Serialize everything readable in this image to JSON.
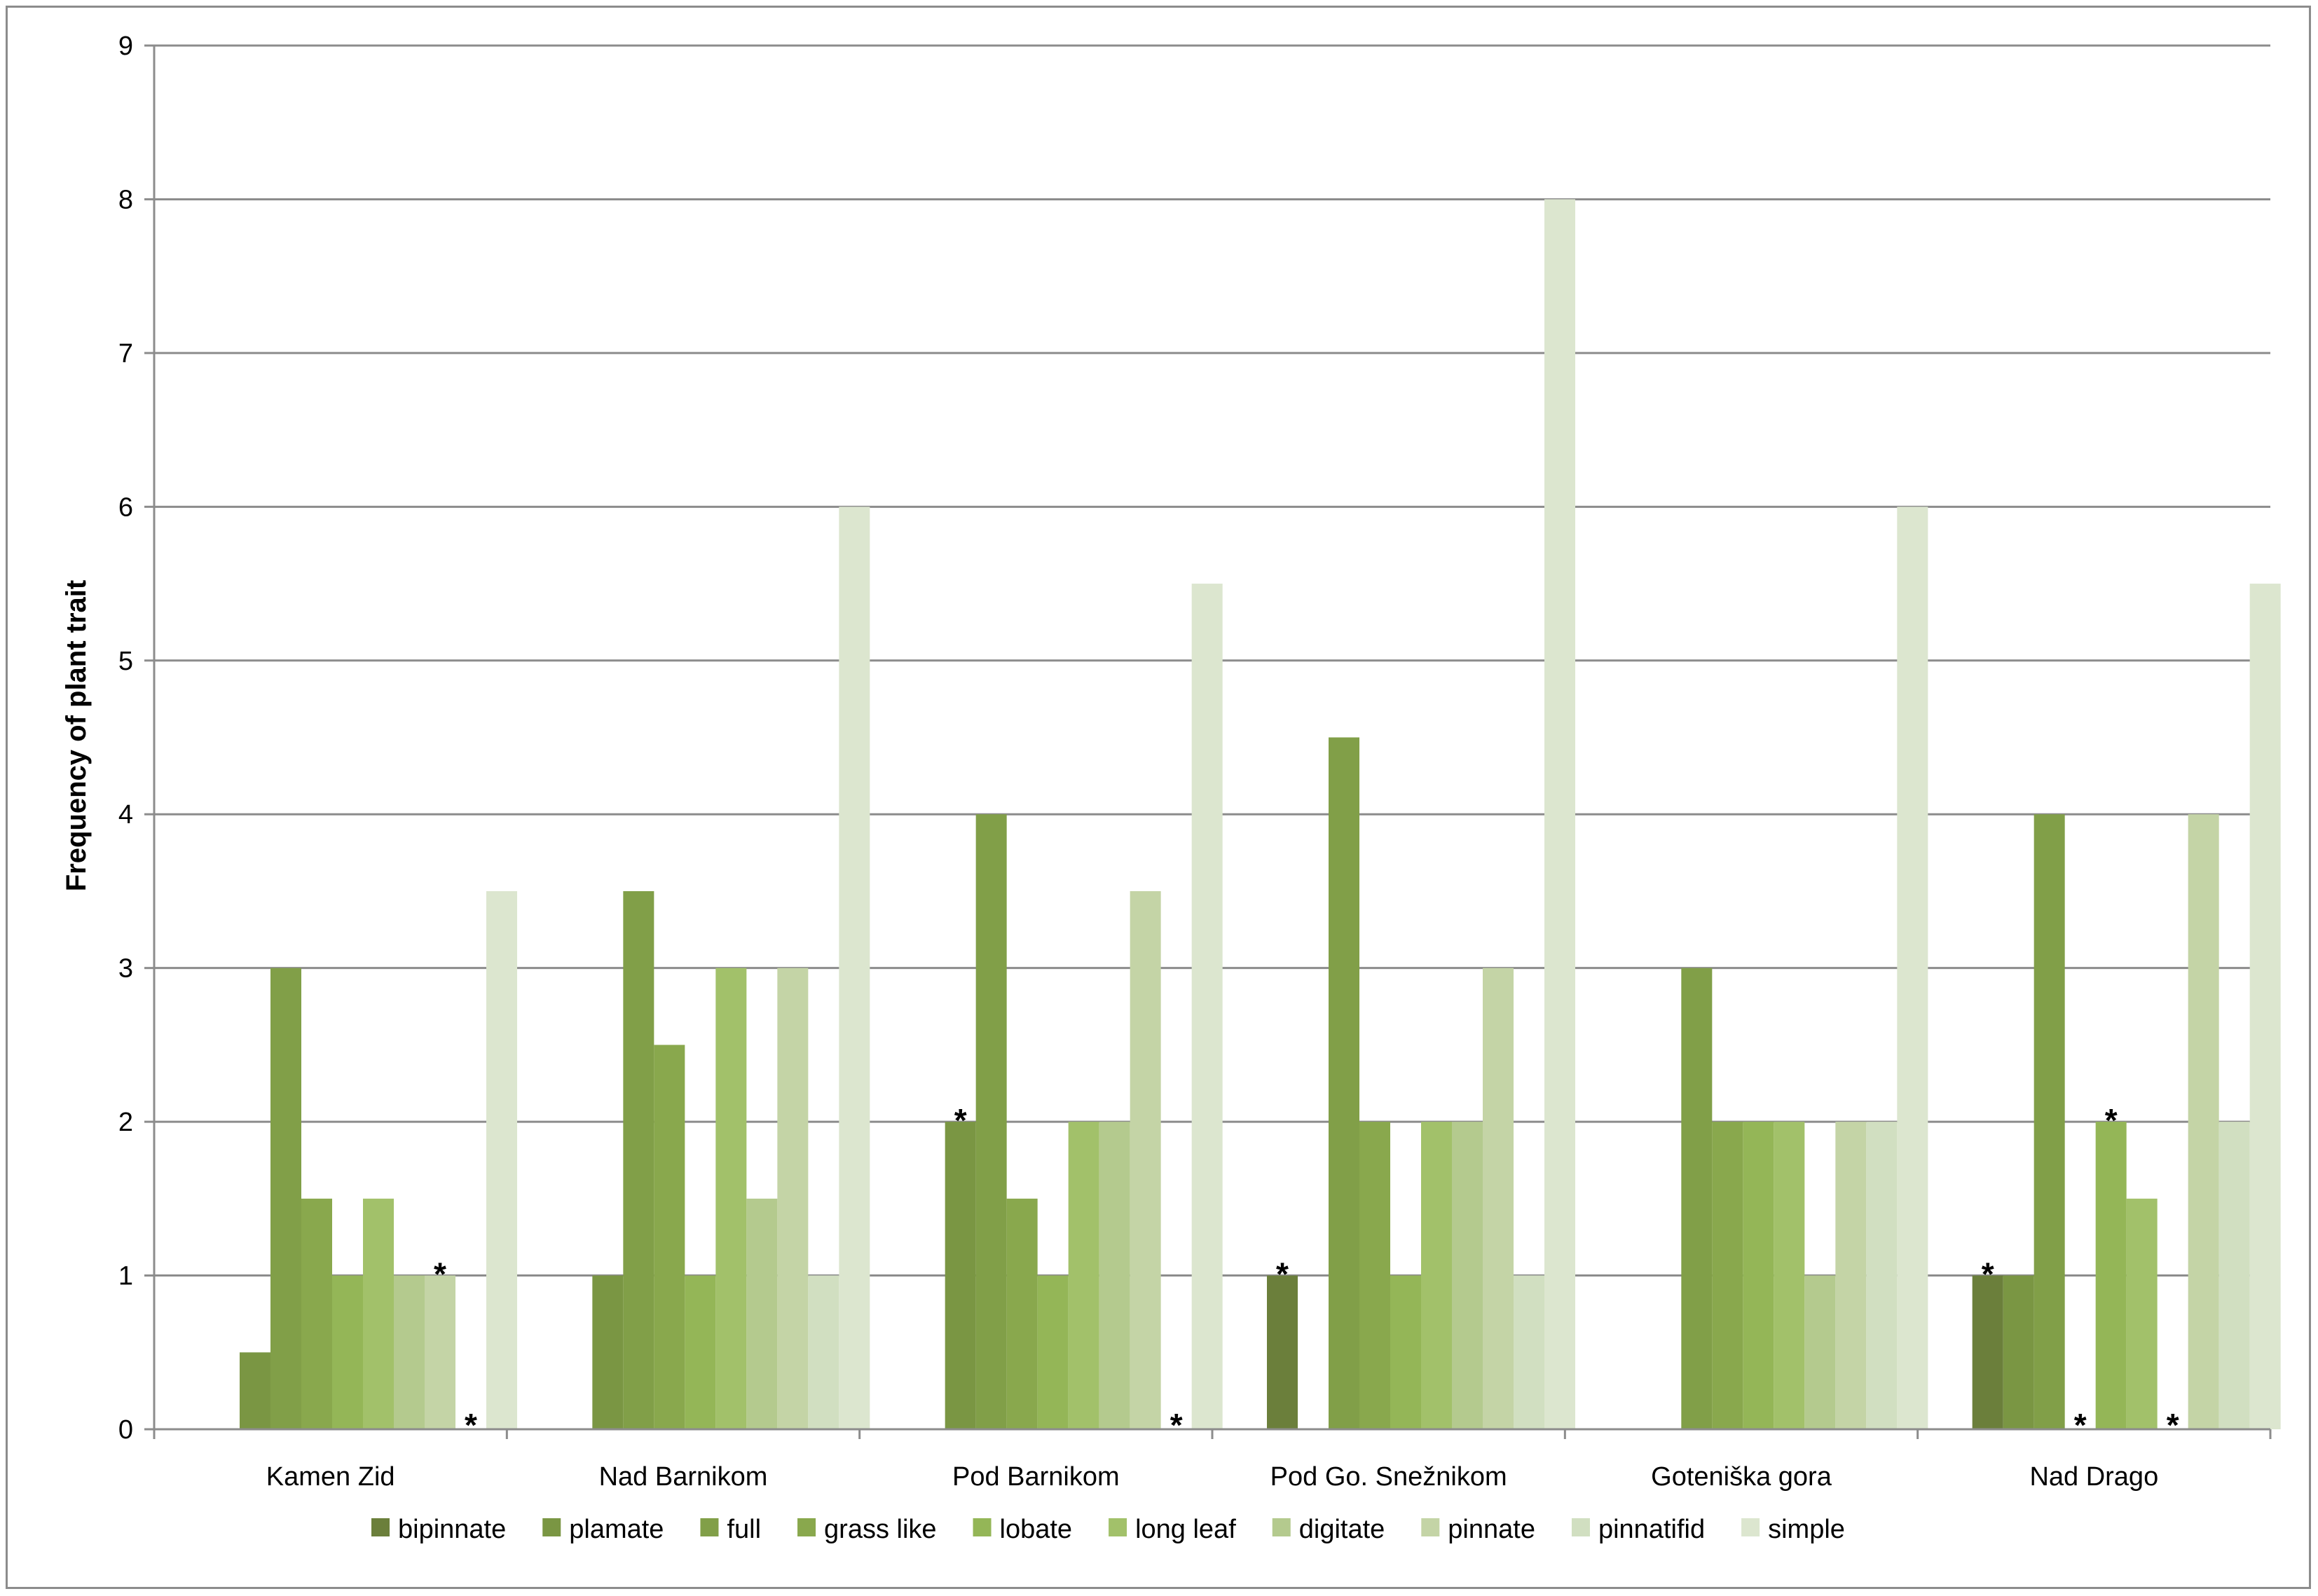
{
  "chart_data": {
    "type": "bar",
    "title": "",
    "xlabel": "",
    "ylabel": "Frequency of plant trait",
    "ylim": [
      0,
      9
    ],
    "y_ticks": [
      0,
      1,
      2,
      3,
      4,
      5,
      6,
      7,
      8,
      9
    ],
    "grid": "horizontal",
    "legend_position": "bottom",
    "categories": [
      "Kamen Zid",
      "Nad Barnikom",
      "Pod Barnikom",
      "Pod Go. Snežnikom",
      "Goteniška gora",
      "Nad Drago"
    ],
    "series": [
      {
        "name": "bipinnate",
        "color": "#6b7f3b",
        "values": [
          0,
          0,
          0,
          1,
          0,
          1
        ]
      },
      {
        "name": "plamate",
        "color": "#7a9643",
        "values": [
          0.5,
          1,
          2,
          0,
          0,
          1
        ]
      },
      {
        "name": "full",
        "color": "#819f48",
        "values": [
          3,
          3.5,
          4,
          4.5,
          3,
          4
        ]
      },
      {
        "name": "grass like",
        "color": "#89a84d",
        "values": [
          1.5,
          2.5,
          1.5,
          2,
          2,
          0
        ]
      },
      {
        "name": "lobate",
        "color": "#94b657",
        "values": [
          1,
          1,
          1,
          1,
          2,
          2
        ]
      },
      {
        "name": "long leaf",
        "color": "#a2c16a",
        "values": [
          1.5,
          3,
          2,
          2,
          2,
          1.5
        ]
      },
      {
        "name": "digitate",
        "color": "#b4ca8e",
        "values": [
          1,
          1.5,
          2,
          2,
          1,
          0
        ]
      },
      {
        "name": "pinnate",
        "color": "#c4d4a6",
        "values": [
          1,
          3,
          3.5,
          3,
          2,
          4
        ]
      },
      {
        "name": "pinnatifid",
        "color": "#d1dfc1",
        "values": [
          0,
          1,
          0,
          1,
          2,
          2
        ]
      },
      {
        "name": "simple",
        "color": "#dce6cf",
        "values": [
          3.5,
          6,
          5.5,
          8,
          6,
          5.5
        ]
      }
    ],
    "annotations": [
      {
        "text": "*",
        "category": "Kamen Zid",
        "series": "pinnate"
      },
      {
        "text": "*",
        "category": "Kamen Zid",
        "series": "pinnatifid"
      },
      {
        "text": "*",
        "category": "Pod Barnikom",
        "series": "plamate"
      },
      {
        "text": "*",
        "category": "Pod Barnikom",
        "series": "pinnatifid"
      },
      {
        "text": "*",
        "category": "Pod Go. Snežnikom",
        "series": "bipinnate"
      },
      {
        "text": "*",
        "category": "Nad Drago",
        "series": "bipinnate"
      },
      {
        "text": "*",
        "category": "Nad Drago",
        "series": "grass like"
      },
      {
        "text": "*",
        "category": "Nad Drago",
        "series": "lobate"
      },
      {
        "text": "*",
        "category": "Nad Drago",
        "series": "digitate"
      }
    ]
  }
}
